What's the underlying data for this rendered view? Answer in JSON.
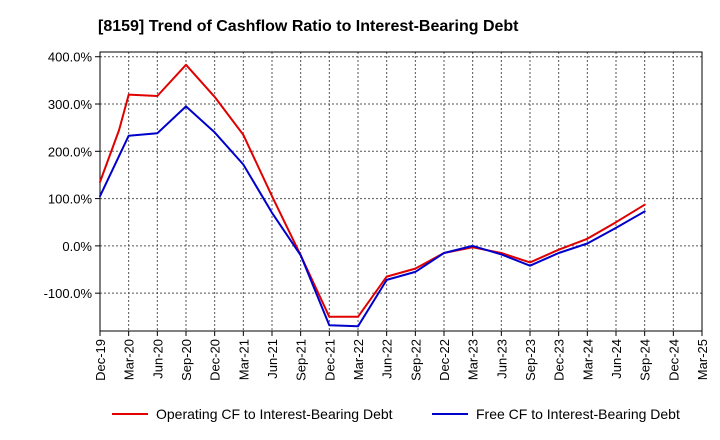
{
  "chart_data": {
    "type": "line",
    "title": "[8159]  Trend of Cashflow Ratio to Interest-Bearing Debt",
    "xlabel": "",
    "ylabel": "",
    "x": [
      "Dec-19",
      "Mar-20",
      "Jun-20",
      "Sep-20",
      "Dec-20",
      "Mar-21",
      "Jun-21",
      "Sep-21",
      "Dec-21",
      "Mar-22",
      "Jun-22",
      "Sep-22",
      "Dec-22",
      "Mar-23",
      "Jun-23",
      "Sep-23",
      "Dec-23",
      "Mar-24",
      "Jun-24",
      "Sep-24",
      "Dec-24",
      "Mar-25"
    ],
    "x_ticks": [
      "Dec-19",
      "Mar-20",
      "Jun-20",
      "Sep-20",
      "Dec-20",
      "Mar-21",
      "Jun-21",
      "Sep-21",
      "Dec-21",
      "Mar-22",
      "Jun-22",
      "Sep-22",
      "Dec-22",
      "Mar-23",
      "Jun-23",
      "Sep-23",
      "Dec-23",
      "Mar-24",
      "Jun-24",
      "Sep-24",
      "Dec-24",
      "Mar-25"
    ],
    "y_ticks": [
      "400.0%",
      "300.0%",
      "200.0%",
      "100.0%",
      "0.0%",
      "-100.0%"
    ],
    "y_tick_values": [
      400,
      300,
      200,
      100,
      0,
      -100
    ],
    "ylim": [
      -180,
      410
    ],
    "grid": true,
    "legend_position": "bottom",
    "series": [
      {
        "name": "Operating CF to Interest-Bearing Debt",
        "color": "#e00000",
        "points": [
          {
            "x": "Dec-19",
            "y": 135
          },
          {
            "x": "Feb-20",
            "y": 245
          },
          {
            "x": "Mar-20",
            "y": 320
          },
          {
            "x": "Jun-20",
            "y": 317
          },
          {
            "x": "Sep-20",
            "y": 383
          },
          {
            "x": "Dec-20",
            "y": 315
          },
          {
            "x": "Mar-21",
            "y": 235
          },
          {
            "x": "Jun-21",
            "y": 105
          },
          {
            "x": "Sep-21",
            "y": -20
          },
          {
            "x": "Dec-21",
            "y": -150
          },
          {
            "x": "Mar-22",
            "y": -150
          },
          {
            "x": "Jun-22",
            "y": -65
          },
          {
            "x": "Sep-22",
            "y": -48
          },
          {
            "x": "Dec-22",
            "y": -15
          },
          {
            "x": "Mar-23",
            "y": -3
          },
          {
            "x": "Jun-23",
            "y": -15
          },
          {
            "x": "Sep-23",
            "y": -35
          },
          {
            "x": "Dec-23",
            "y": -8
          },
          {
            "x": "Mar-24",
            "y": 15
          },
          {
            "x": "Jun-24",
            "y": 50
          },
          {
            "x": "Sep-24",
            "y": 87
          }
        ]
      },
      {
        "name": "Free CF to Interest-Bearing Debt",
        "color": "#0000cc",
        "points": [
          {
            "x": "Dec-19",
            "y": 105
          },
          {
            "x": "Mar-20",
            "y": 233
          },
          {
            "x": "Jun-20",
            "y": 238
          },
          {
            "x": "Sep-20",
            "y": 295
          },
          {
            "x": "Dec-20",
            "y": 240
          },
          {
            "x": "Mar-21",
            "y": 172
          },
          {
            "x": "Jun-21",
            "y": 70
          },
          {
            "x": "Sep-21",
            "y": -20
          },
          {
            "x": "Dec-21",
            "y": -168
          },
          {
            "x": "Mar-22",
            "y": -170
          },
          {
            "x": "Jun-22",
            "y": -72
          },
          {
            "x": "Sep-22",
            "y": -55
          },
          {
            "x": "Dec-22",
            "y": -15
          },
          {
            "x": "Mar-23",
            "y": 0
          },
          {
            "x": "Jun-23",
            "y": -18
          },
          {
            "x": "Sep-23",
            "y": -42
          },
          {
            "x": "Dec-23",
            "y": -15
          },
          {
            "x": "Mar-24",
            "y": 5
          },
          {
            "x": "Jun-24",
            "y": 38
          },
          {
            "x": "Sep-24",
            "y": 73
          }
        ]
      }
    ]
  }
}
